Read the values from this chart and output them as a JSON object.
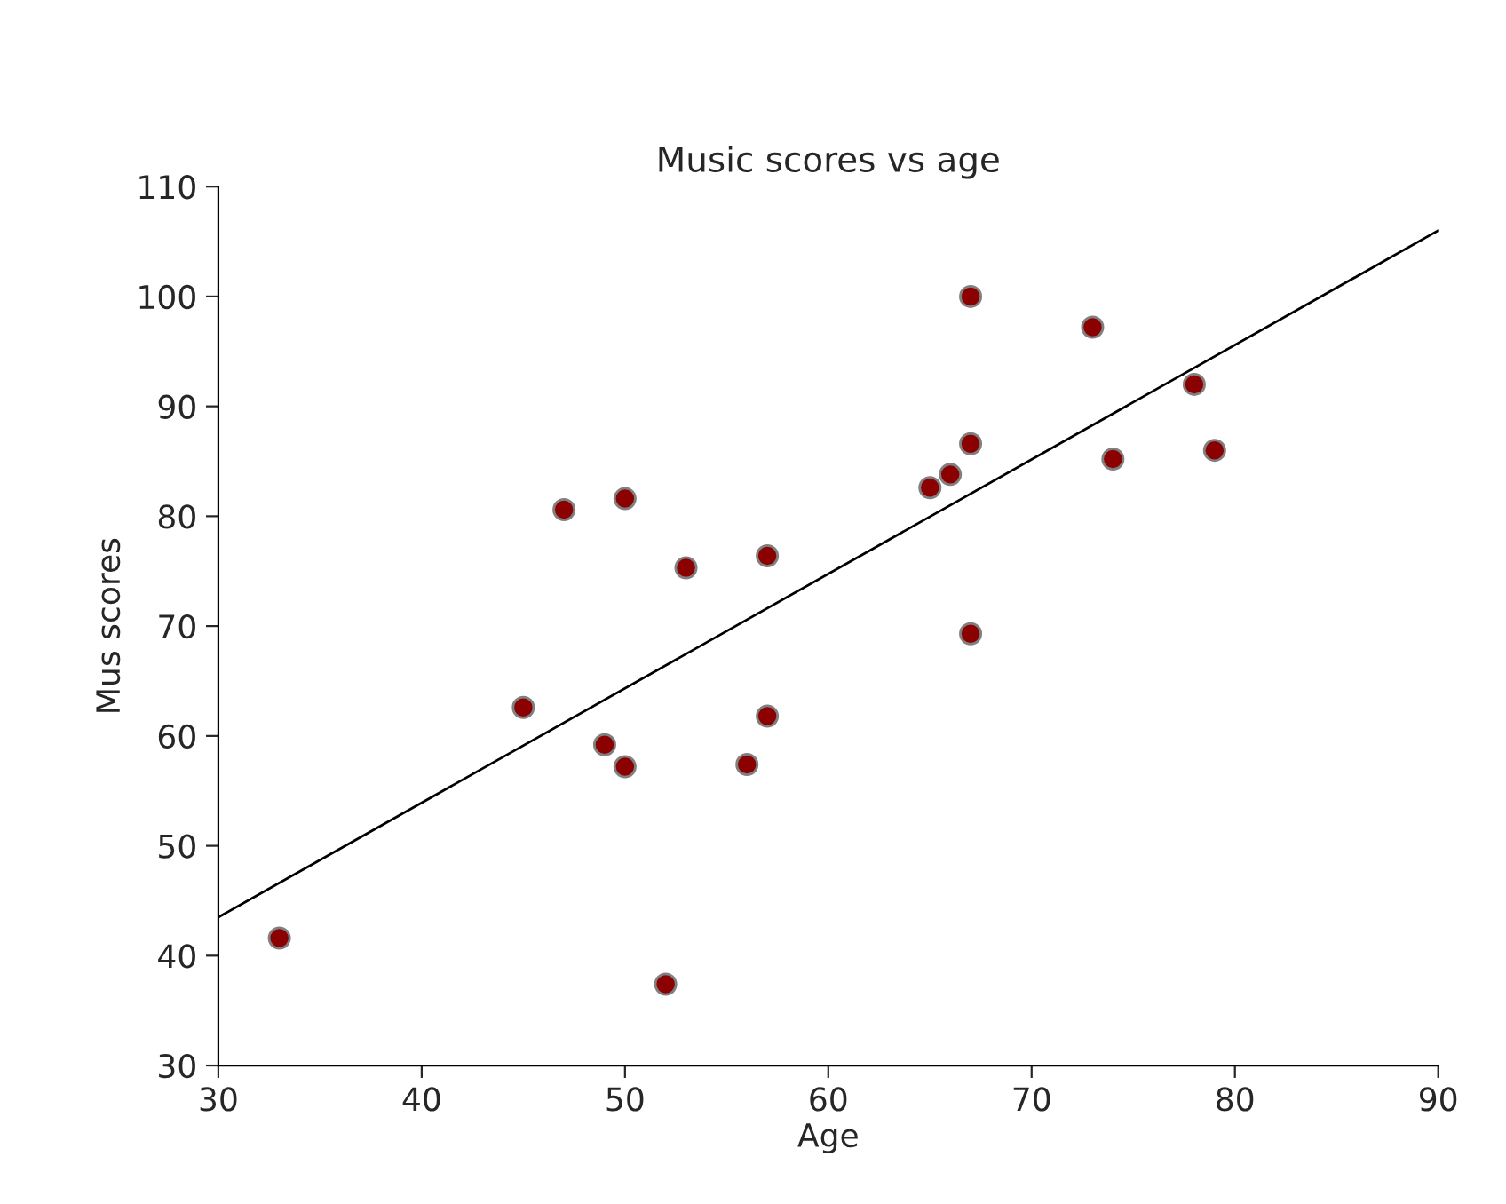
{
  "chart_data": {
    "type": "scatter",
    "title": "Music scores vs age",
    "xlabel": "Age",
    "ylabel": "Mus scores",
    "xlim": [
      30,
      90
    ],
    "xticks": [
      30,
      40,
      50,
      60,
      70,
      80,
      90
    ],
    "ylim": [
      30,
      110
    ],
    "yticks": [
      30,
      40,
      50,
      60,
      70,
      80,
      90,
      100,
      110
    ],
    "grid": false,
    "legend": false,
    "marker": "circle",
    "series": [
      {
        "color": "#8b0000",
        "x": [
          33,
          45,
          47,
          49,
          50,
          50,
          52,
          53,
          56,
          57,
          57,
          65,
          66,
          67,
          67,
          67,
          73,
          74,
          78,
          79
        ],
        "values": [
          41.6,
          62.6,
          80.6,
          59.2,
          81.6,
          57.2,
          37.4,
          75.3,
          57.4,
          76.4,
          61.8,
          82.6,
          83.8,
          86.6,
          100,
          69.3,
          97.2,
          85.2,
          92,
          86
        ]
      },
      {
        "type": "line",
        "color": "#000000",
        "x": [
          30,
          90
        ],
        "values": [
          43.5,
          106
        ],
        "marker": "none"
      }
    ]
  }
}
